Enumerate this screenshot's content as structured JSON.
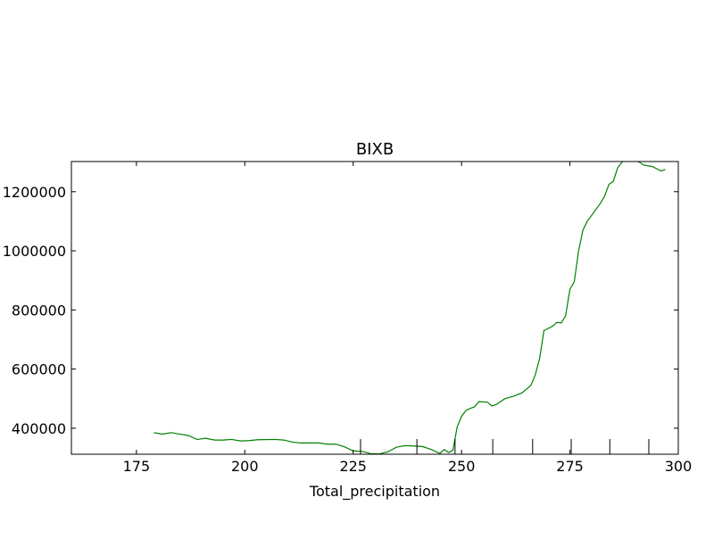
{
  "chart_data": {
    "type": "line",
    "title": "BIXB",
    "x_label": "Total_precipitation",
    "x": [
      179,
      181,
      183,
      185,
      187,
      189,
      191,
      193,
      195,
      197,
      199,
      201,
      203,
      207,
      209,
      211,
      213,
      217,
      219,
      221,
      223,
      225,
      227,
      229,
      231,
      233,
      235,
      237,
      239,
      241,
      243,
      245,
      246,
      247,
      248,
      249,
      250,
      251,
      252,
      253,
      254,
      256,
      257,
      258,
      260,
      262,
      264,
      266,
      267,
      268,
      269,
      271,
      272,
      273,
      274,
      275,
      276,
      277,
      278,
      279,
      280,
      282,
      283,
      284,
      285,
      286,
      287,
      288,
      290,
      291,
      292,
      294,
      296,
      297
    ],
    "series": [
      {
        "name": "BIXB",
        "color": "#008000",
        "values": [
          385000,
          380000,
          385000,
          380000,
          375000,
          362000,
          366000,
          360000,
          360000,
          362000,
          357000,
          358000,
          361000,
          362000,
          360000,
          353000,
          350000,
          350000,
          346000,
          346000,
          337000,
          323000,
          322000,
          314000,
          313000,
          320000,
          336000,
          341000,
          340000,
          338000,
          328000,
          315000,
          328000,
          318000,
          325000,
          405000,
          440000,
          460000,
          467000,
          472000,
          490000,
          488000,
          475000,
          480000,
          500000,
          508000,
          520000,
          545000,
          580000,
          635000,
          730000,
          745000,
          758000,
          756000,
          780000,
          870000,
          895000,
          1000000,
          1070000,
          1100000,
          1120000,
          1160000,
          1185000,
          1225000,
          1235000,
          1280000,
          1300000,
          1310000,
          1305000,
          1300000,
          1290000,
          1285000,
          1270000,
          1275000
        ]
      }
    ],
    "markers": [
      226.7,
      239.7,
      248.5,
      257.2,
      266.4,
      275.3,
      284.2,
      293.2
    ],
    "xlim": [
      160,
      300
    ],
    "xticks": [
      175,
      200,
      225,
      250,
      275,
      300
    ],
    "ylim": [
      312000,
      1302000
    ],
    "yticks": [
      400000,
      600000,
      800000,
      1000000,
      1200000
    ]
  }
}
